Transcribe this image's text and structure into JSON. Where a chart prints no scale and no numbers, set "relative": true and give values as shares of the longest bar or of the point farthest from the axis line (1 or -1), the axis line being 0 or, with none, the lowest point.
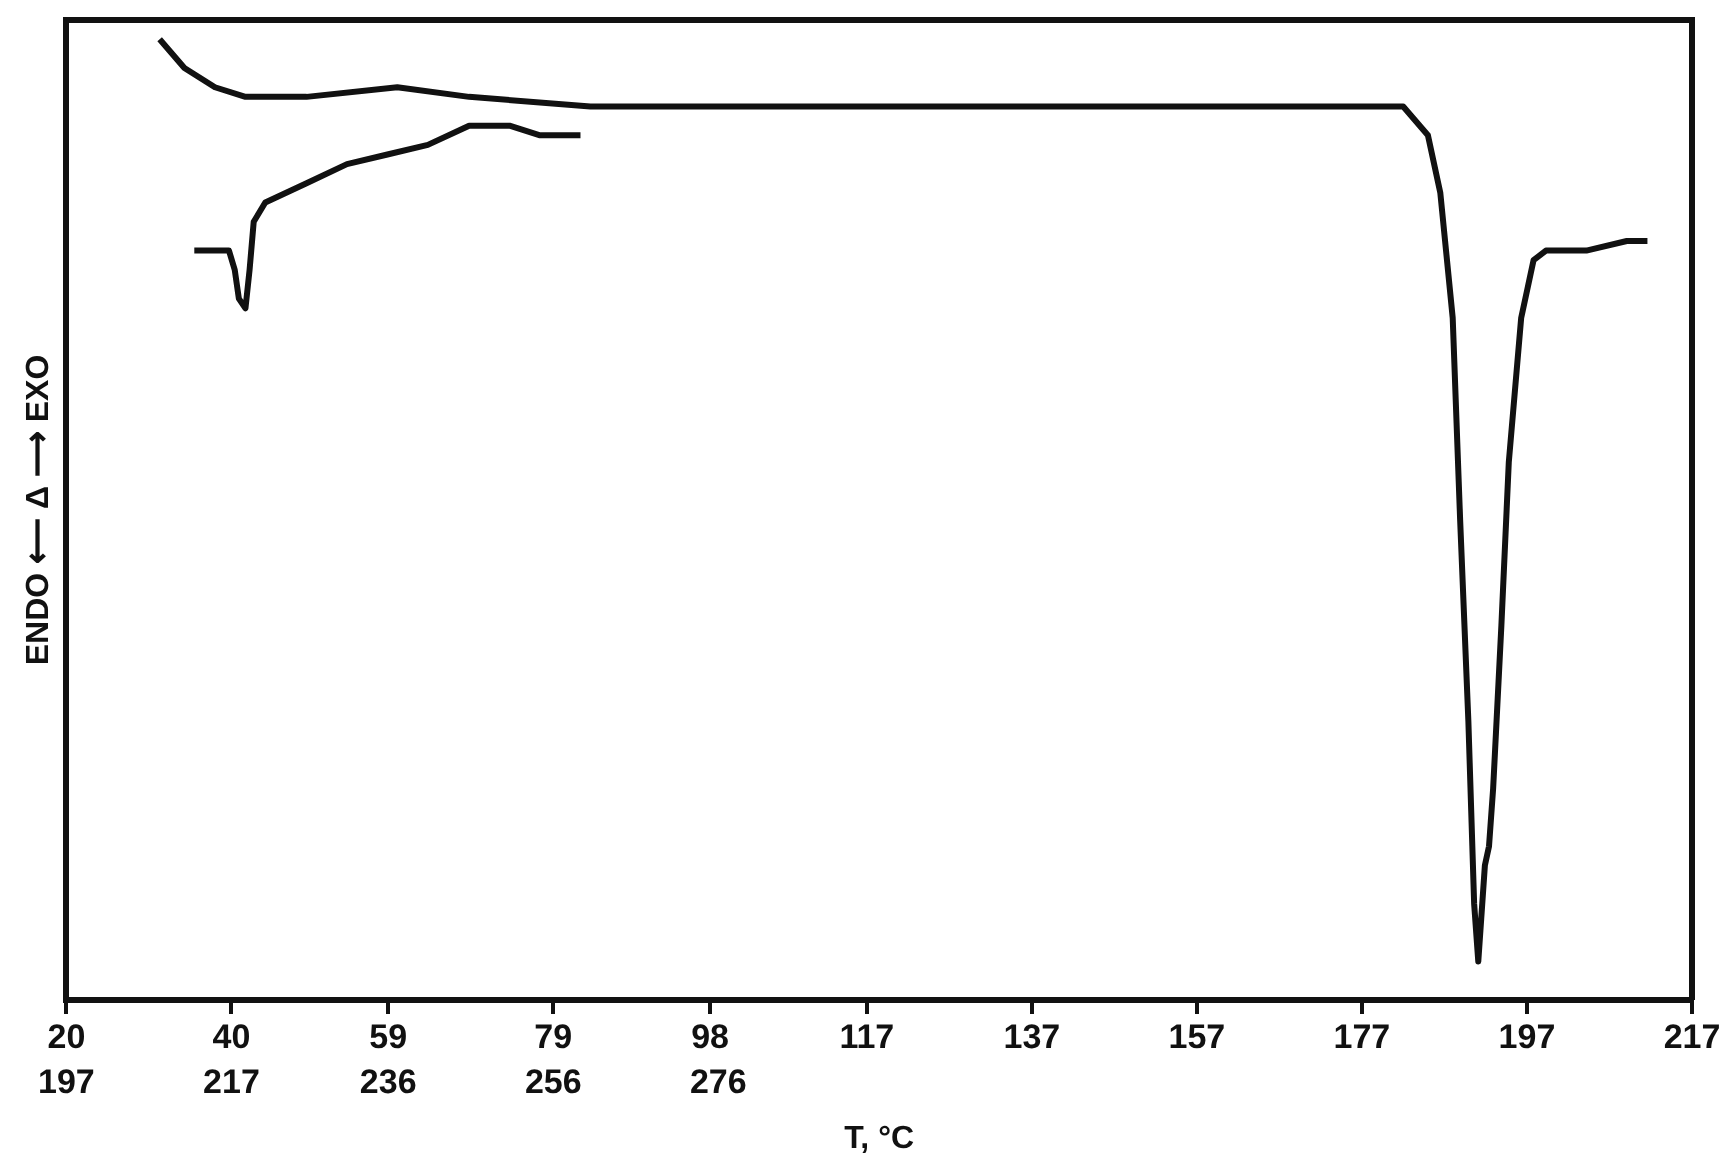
{
  "chart_data": {
    "type": "line",
    "relative": true,
    "xlabel": "T, °C",
    "ylabel": "ENDO ⟵ Δ ⟶ EXO",
    "xlim": [
      20,
      217
    ],
    "xticks": [
      20,
      40,
      59,
      79,
      98,
      117,
      137,
      157,
      177,
      197,
      217
    ],
    "x2lim": [
      197,
      394
    ],
    "x2ticks": [
      197,
      217,
      236,
      256,
      276
    ],
    "grid": false,
    "legend": false,
    "marker": "none",
    "line_style": "solid",
    "series": [
      {
        "color": "#111111",
        "x": [
          31.3,
          34.3,
          38.0,
          41.7,
          49.1,
          60.1,
          68.8,
          83.5,
          108.2,
          157.5,
          182.0,
          185.0,
          186.5,
          188.0,
          188.9,
          189.9,
          190.6,
          191.1,
          191.9,
          192.4,
          192.9,
          193.9,
          194.8,
          196.3,
          197.8,
          199.3,
          204.2,
          209.1,
          211.6
        ],
        "values": [
          1.0,
          0.97,
          0.95,
          0.94,
          0.94,
          0.95,
          0.94,
          0.93,
          0.93,
          0.93,
          0.93,
          0.9,
          0.84,
          0.71,
          0.5,
          0.29,
          0.1,
          0.04,
          0.14,
          0.16,
          0.22,
          0.39,
          0.56,
          0.71,
          0.77,
          0.78,
          0.78,
          0.79,
          0.79
        ]
      },
      {
        "color": "#111111",
        "axis": "x2",
        "x": [
          212.5,
          215,
          216.7,
          217.4,
          217.9,
          218.7,
          219.2,
          219.7,
          221.1,
          226.1,
          231,
          235.9,
          240.8,
          245.8,
          248.2,
          250.7,
          254.4,
          259.3
        ],
        "values": [
          0.78,
          0.78,
          0.78,
          0.76,
          0.73,
          0.72,
          0.76,
          0.81,
          0.83,
          0.85,
          0.87,
          0.88,
          0.89,
          0.91,
          0.91,
          0.91,
          0.9,
          0.9
        ]
      }
    ]
  }
}
